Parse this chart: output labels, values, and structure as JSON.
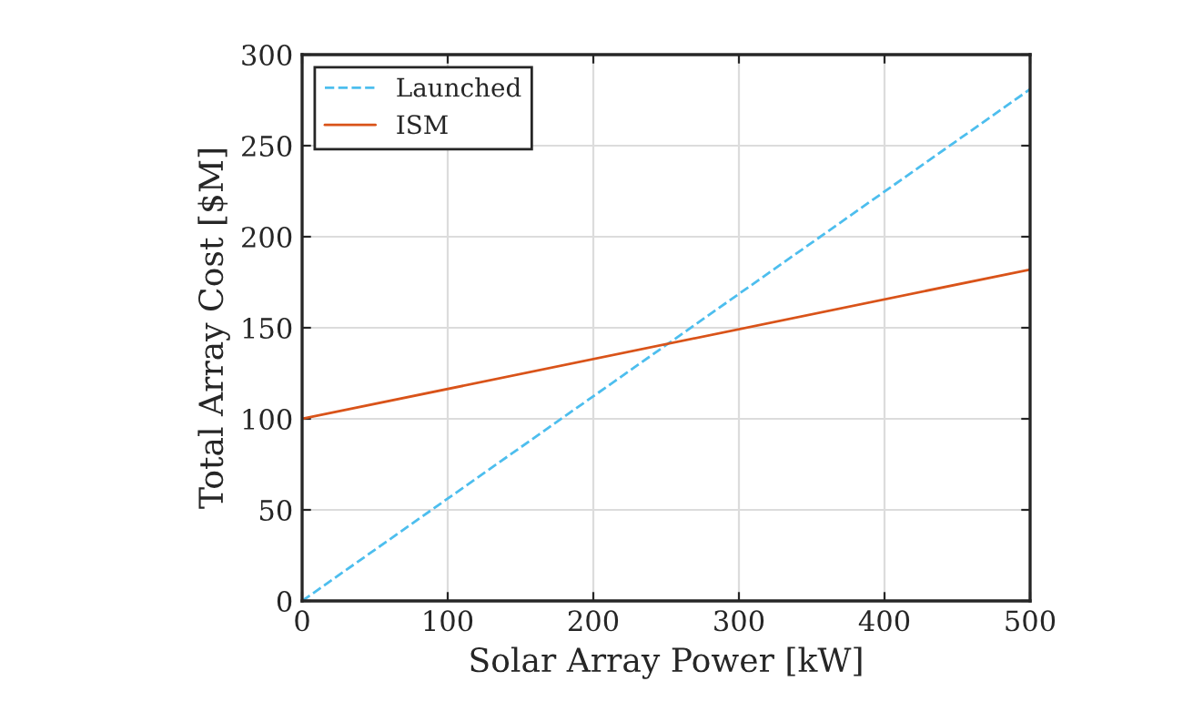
{
  "chart_data": {
    "type": "line",
    "xlabel": "Solar Array Power [kW]",
    "ylabel": "Total Array Cost [$M]",
    "x": [
      0,
      500
    ],
    "series": [
      {
        "name": "Launched",
        "color": "#4dbeee",
        "values": [
          0,
          281
        ],
        "line_style": "dashed"
      },
      {
        "name": "ISM",
        "color": "#d95319",
        "values": [
          100,
          182
        ],
        "line_style": "solid"
      }
    ],
    "xlim": [
      0,
      500
    ],
    "xticks": [
      0,
      100,
      200,
      300,
      400,
      500
    ],
    "ylim": [
      0,
      300
    ],
    "yticks": [
      0,
      50,
      100,
      150,
      200,
      250,
      300
    ],
    "grid": true,
    "legend": "top left"
  }
}
